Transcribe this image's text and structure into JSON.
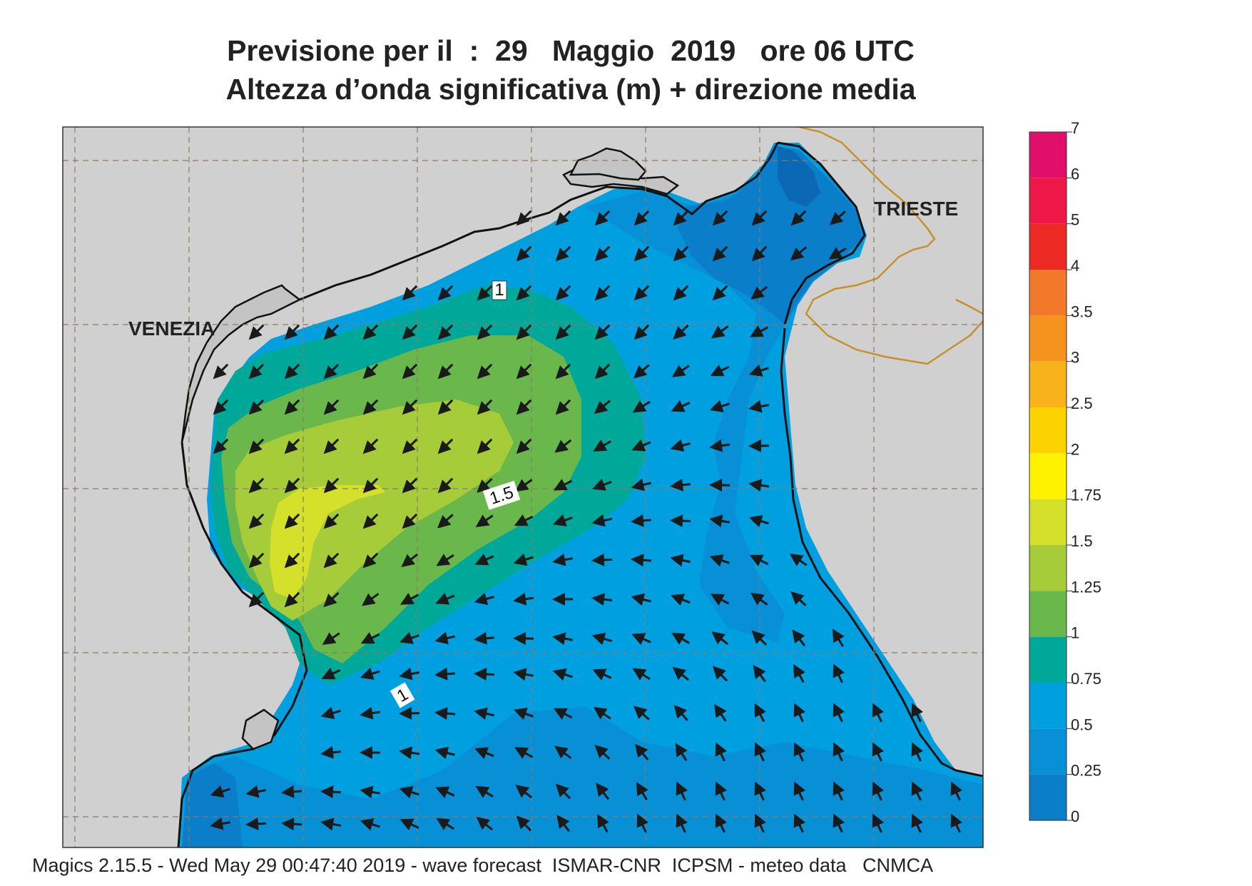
{
  "header": {
    "title_line1": "Previsione per il  :  29   Maggio  2019   ore 06 UTC",
    "title_line2": "Altezza d’onda significativa (m) + direzione media"
  },
  "map": {
    "land_color": "#d0d0d0",
    "coast_color": "#111111",
    "border_color": "#c8902a",
    "grid_color": "#8a7a6a",
    "place_labels": [
      {
        "name": "venezia-label",
        "text": "VENEZIA"
      },
      {
        "name": "trieste-label",
        "text": "TRIESTE"
      }
    ],
    "contour_labels": [
      "1",
      "1.5",
      "1"
    ],
    "wave_direction_field": "mean wave direction arrows, predominantly toward SW in the north-central basin and toward NW in the south-east"
  },
  "legend": {
    "levels": [
      {
        "label": "7",
        "color": "#e0106a"
      },
      {
        "label": "6",
        "color": "#ee1848"
      },
      {
        "label": "5",
        "color": "#ec2a24"
      },
      {
        "label": "4",
        "color": "#f2782a"
      },
      {
        "label": "3.5",
        "color": "#f6921e"
      },
      {
        "label": "3",
        "color": "#f8b21c"
      },
      {
        "label": "2.5",
        "color": "#fcd200"
      },
      {
        "label": "2",
        "color": "#fff200"
      },
      {
        "label": "1.75",
        "color": "#d4e02a"
      },
      {
        "label": "1.5",
        "color": "#a6cc3a"
      },
      {
        "label": "1.25",
        "color": "#6ab84c"
      },
      {
        "label": "1",
        "color": "#00a89a"
      },
      {
        "label": "0.75",
        "color": "#00a0e0"
      },
      {
        "label": "0.5",
        "color": "#0890d6"
      },
      {
        "label": "0.25",
        "color": "#0a7ec8"
      },
      {
        "label": "0",
        "color": "#0a68b4"
      }
    ]
  },
  "footer": {
    "text": "Magics 2.15.5 - Wed May 29 00:47:40 2019 - wave forecast  ISMAR-CNR  ICPSM - meteo data   CNMCA"
  }
}
